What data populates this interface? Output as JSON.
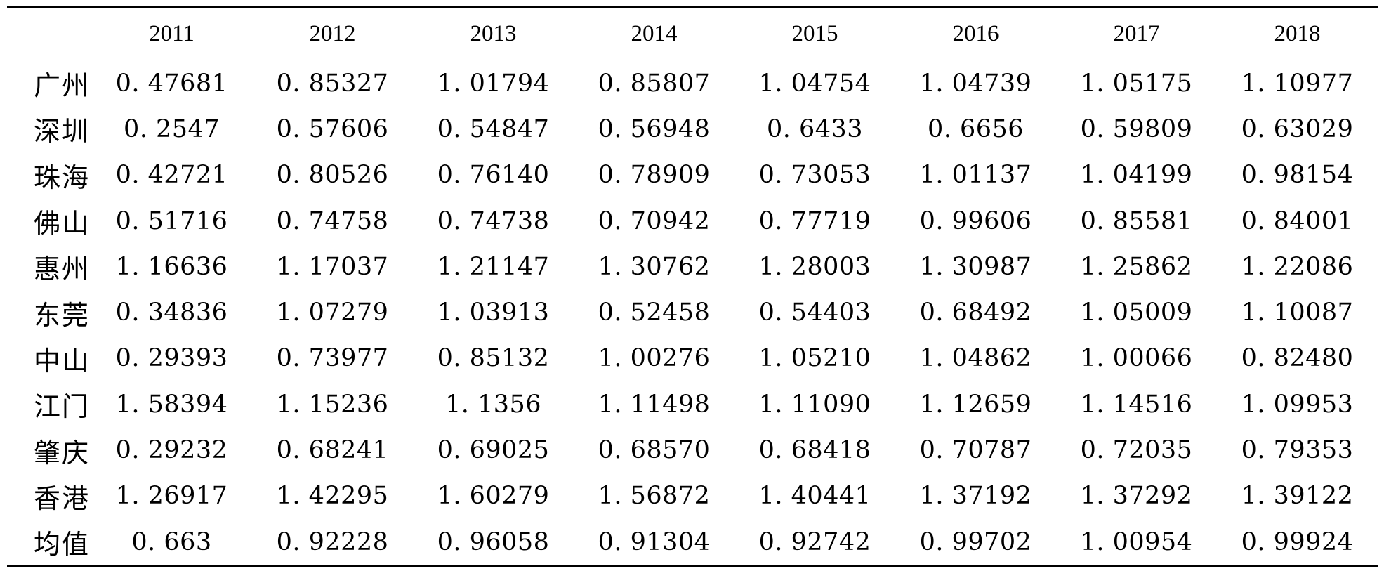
{
  "table": {
    "corner": "",
    "columns": [
      "2011",
      "2012",
      "2013",
      "2014",
      "2015",
      "2016",
      "2017",
      "2018"
    ],
    "rows": [
      {
        "label": "广州",
        "values": [
          "0. 47681",
          "0. 85327",
          "1. 01794",
          "0. 85807",
          "1. 04754",
          "1. 04739",
          "1. 05175",
          "1. 10977"
        ]
      },
      {
        "label": "深圳",
        "values": [
          "0. 2547",
          "0. 57606",
          "0. 54847",
          "0. 56948",
          "0. 6433",
          "0. 6656",
          "0. 59809",
          "0. 63029"
        ]
      },
      {
        "label": "珠海",
        "values": [
          "0. 42721",
          "0. 80526",
          "0. 76140",
          "0. 78909",
          "0. 73053",
          "1. 01137",
          "1. 04199",
          "0. 98154"
        ]
      },
      {
        "label": "佛山",
        "values": [
          "0. 51716",
          "0. 74758",
          "0. 74738",
          "0. 70942",
          "0. 77719",
          "0. 99606",
          "0. 85581",
          "0. 84001"
        ]
      },
      {
        "label": "惠州",
        "values": [
          "1. 16636",
          "1. 17037",
          "1. 21147",
          "1. 30762",
          "1. 28003",
          "1. 30987",
          "1. 25862",
          "1. 22086"
        ]
      },
      {
        "label": "东莞",
        "values": [
          "0. 34836",
          "1. 07279",
          "1. 03913",
          "0. 52458",
          "0. 54403",
          "0. 68492",
          "1. 05009",
          "1. 10087"
        ]
      },
      {
        "label": "中山",
        "values": [
          "0. 29393",
          "0. 73977",
          "0. 85132",
          "1. 00276",
          "1. 05210",
          "1. 04862",
          "1. 00066",
          "0. 82480"
        ]
      },
      {
        "label": "江门",
        "values": [
          "1. 58394",
          "1. 15236",
          "1. 1356",
          "1. 11498",
          "1. 11090",
          "1. 12659",
          "1. 14516",
          "1. 09953"
        ]
      },
      {
        "label": "肇庆",
        "values": [
          "0. 29232",
          "0. 68241",
          "0. 69025",
          "0. 68570",
          "0. 68418",
          "0. 70787",
          "0. 72035",
          "0. 79353"
        ]
      },
      {
        "label": "香港",
        "values": [
          "1. 26917",
          "1. 42295",
          "1. 60279",
          "1. 56872",
          "1. 40441",
          "1. 37192",
          "1. 37292",
          "1. 39122"
        ]
      },
      {
        "label": "均值",
        "values": [
          "0. 663",
          "0. 92228",
          "0. 96058",
          "0. 91304",
          "0. 92742",
          "0. 99702",
          "1. 00954",
          "0. 99924"
        ]
      }
    ]
  }
}
